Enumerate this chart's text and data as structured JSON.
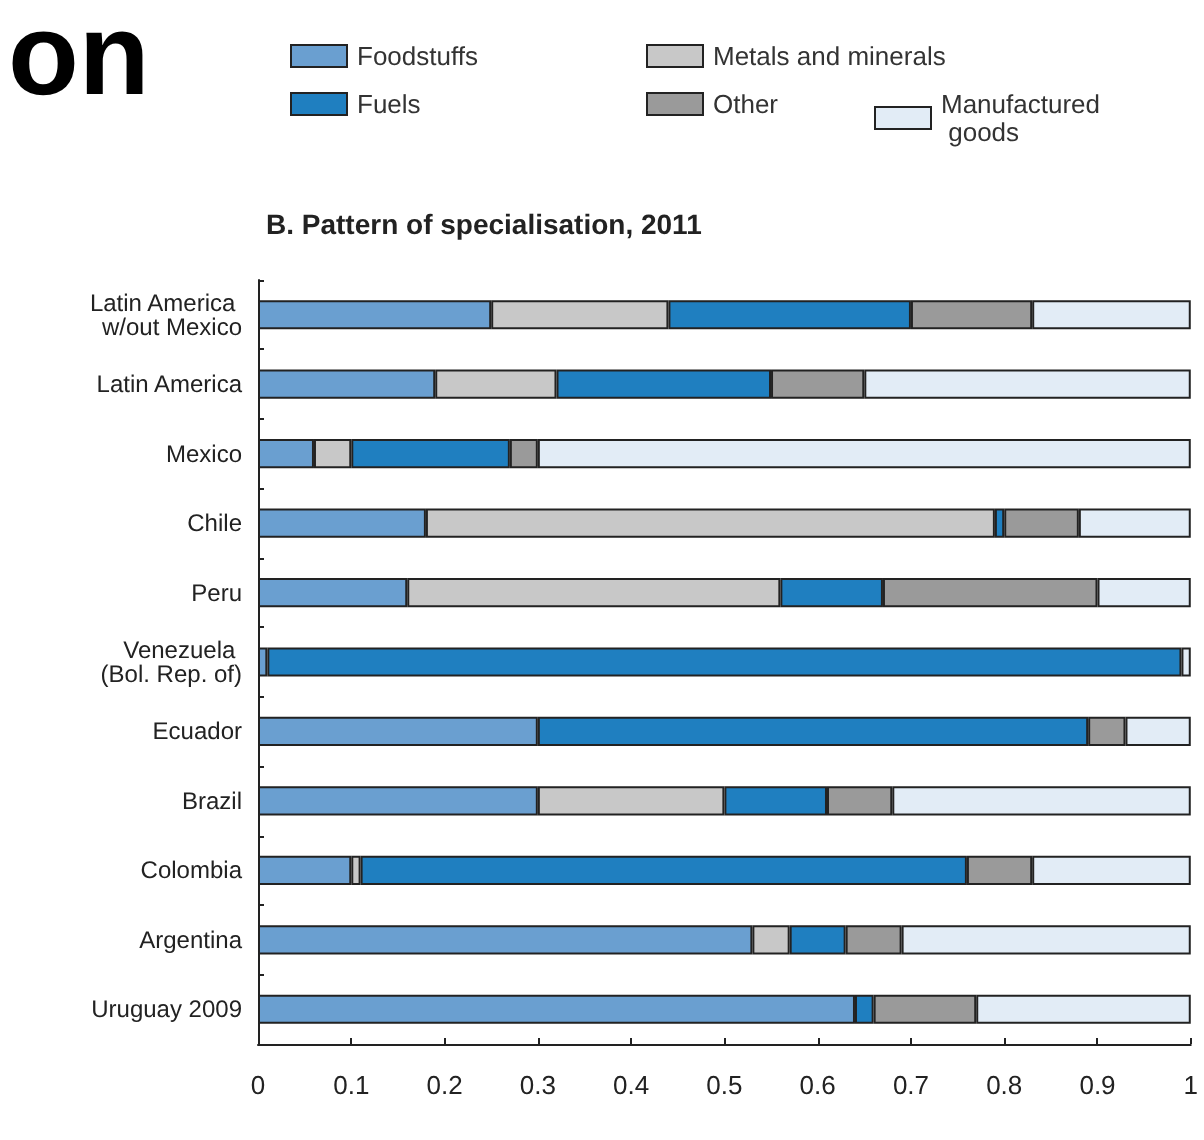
{
  "chart_data": {
    "type": "bar",
    "orientation": "horizontal",
    "stacked": true,
    "title": "B. Pattern of specialisation, 2011",
    "annotations": [
      "on"
    ],
    "categories": [
      "Latin America w/out Mexico",
      "Latin America",
      "Mexico",
      "Chile",
      "Peru",
      "Venezuela (Bol. Rep. of)",
      "Ecuador",
      "Brazil",
      "Colombia",
      "Argentina",
      "Uruguay 2009"
    ],
    "series": [
      {
        "name": "Foodstuffs",
        "color": "#6a9fd0",
        "values": [
          0.25,
          0.19,
          0.06,
          0.18,
          0.16,
          0.01,
          0.3,
          0.3,
          0.1,
          0.53,
          0.64
        ]
      },
      {
        "name": "Metals and minerals",
        "color": "#c8c8c8",
        "values": [
          0.19,
          0.13,
          0.04,
          0.61,
          0.4,
          0,
          0,
          0.2,
          0.01,
          0.04,
          0
        ]
      },
      {
        "name": "Fuels",
        "color": "#1f7fc0",
        "values": [
          0.26,
          0.23,
          0.17,
          0.01,
          0.11,
          0.98,
          0.59,
          0.11,
          0.65,
          0.06,
          0.02
        ]
      },
      {
        "name": "Other",
        "color": "#9a9a9a",
        "values": [
          0.13,
          0.1,
          0.03,
          0.08,
          0.23,
          0,
          0.04,
          0.07,
          0.07,
          0.06,
          0.11
        ]
      },
      {
        "name": "Manufactured goods",
        "color": "#e2ecf6",
        "values": [
          0.17,
          0.35,
          0.7,
          0.12,
          0.1,
          0.01,
          0.07,
          0.32,
          0.17,
          0.31,
          0.23
        ]
      }
    ],
    "xlim": [
      0,
      1
    ],
    "xticks": [
      0,
      0.1,
      0.2,
      0.3,
      0.4,
      0.5,
      0.6,
      0.7,
      0.8,
      0.9,
      1
    ],
    "grid": false,
    "legend": "top right"
  }
}
